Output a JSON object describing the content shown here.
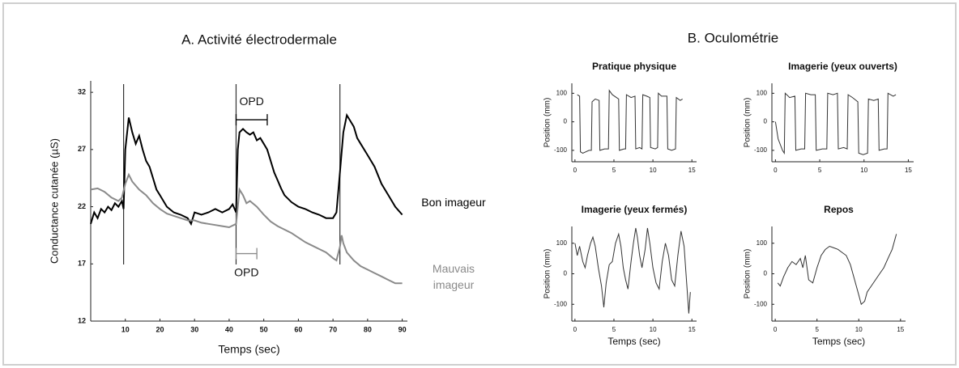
{
  "panel_b_title": "B. Oculométrie",
  "chart_data": [
    {
      "type": "line",
      "title": "A. Activité électrodermale",
      "xlabel": "Temps (sec)",
      "ylabel": "Conductance cutanée (µS)",
      "xlim": [
        0,
        91.5
      ],
      "ylim": [
        12,
        33
      ],
      "xticks": [
        10,
        20,
        30,
        40,
        50,
        60,
        70,
        80,
        90
      ],
      "yticks": [
        12,
        17,
        22,
        27,
        32
      ],
      "events": [
        9.5,
        42,
        72
      ],
      "annotations": [
        {
          "text": "OPD",
          "x": [
            42,
            51
          ],
          "y": 29.6,
          "color": "#000000"
        },
        {
          "text": "OPD",
          "x": [
            42,
            48
          ],
          "y": 17.9,
          "color": "#8a8a8a"
        }
      ],
      "series": [
        {
          "name": "Bon imageur",
          "color": "#000000",
          "x": [
            0,
            1,
            2,
            3,
            4,
            5,
            6,
            7,
            8,
            9,
            9.5,
            10,
            11,
            12,
            13,
            14,
            15,
            16,
            17,
            18,
            19,
            20,
            22,
            24,
            26,
            28,
            29,
            30,
            32,
            34,
            36,
            38,
            40,
            41,
            42,
            42.5,
            43,
            44,
            45,
            46,
            47,
            48,
            49,
            50,
            51,
            52,
            53,
            54,
            55,
            56,
            58,
            60,
            62,
            64,
            66,
            68,
            70,
            71,
            72,
            73,
            74,
            75,
            76,
            77,
            78,
            80,
            82,
            84,
            86,
            88,
            90
          ],
          "values": [
            20.5,
            21.5,
            21,
            21.8,
            21.5,
            22,
            21.7,
            22.3,
            22,
            22.5,
            21.8,
            27,
            29.8,
            28.5,
            27.5,
            28.2,
            27,
            26,
            25.5,
            24.5,
            23.5,
            23,
            22,
            21.5,
            21.3,
            21,
            20.5,
            21.5,
            21.3,
            21.5,
            21.8,
            21.5,
            21.8,
            22.2,
            21.5,
            27,
            28.5,
            28.8,
            28.5,
            28.3,
            28.5,
            27.8,
            28,
            27.5,
            27,
            26,
            25,
            24.3,
            23.6,
            23,
            22.4,
            22,
            21.8,
            21.5,
            21.3,
            21,
            21,
            21.5,
            25,
            28.5,
            30,
            29.5,
            29,
            28,
            27.5,
            26.5,
            25.5,
            24,
            23,
            22,
            21.3
          ]
        },
        {
          "name": "Mauvais imageur",
          "color": "#8a8a8a",
          "x": [
            0,
            2,
            4,
            6,
            8,
            9,
            10,
            11,
            12,
            14,
            16,
            18,
            20,
            22,
            24,
            26,
            28,
            30,
            32,
            34,
            36,
            38,
            40,
            42,
            43,
            44,
            45,
            46,
            48,
            50,
            52,
            54,
            56,
            58,
            60,
            62,
            64,
            66,
            68,
            70,
            71,
            72,
            72.5,
            73,
            74,
            76,
            78,
            80,
            82,
            84,
            86,
            88,
            90
          ],
          "values": [
            23.5,
            23.6,
            23.3,
            22.8,
            22.5,
            22.8,
            24,
            24.8,
            24.2,
            23.5,
            23,
            22.3,
            21.8,
            21.4,
            21.2,
            21,
            20.8,
            20.8,
            20.6,
            20.5,
            20.4,
            20.3,
            20.2,
            20.5,
            23.5,
            23,
            22.3,
            22.5,
            22,
            21.3,
            20.7,
            20.3,
            20,
            19.7,
            19.3,
            18.9,
            18.6,
            18.3,
            18,
            17.5,
            17.3,
            18.5,
            19.5,
            18.8,
            18,
            17.3,
            16.8,
            16.5,
            16.2,
            15.9,
            15.6,
            15.3,
            15.3
          ]
        }
      ]
    },
    {
      "type": "line",
      "title": "Pratique physique",
      "ylabel": "Position (mm)",
      "xlim": [
        -0.4,
        15.6
      ],
      "ylim": [
        -140,
        135
      ],
      "xticks": [
        0,
        5,
        10,
        15
      ],
      "yticks": [
        -100,
        0,
        100
      ],
      "series": [
        {
          "color": "#333333",
          "x": [
            0.3,
            0.6,
            0.7,
            1,
            1.8,
            2.1,
            2.2,
            2.6,
            3.1,
            3.2,
            3.8,
            4.3,
            4.4,
            4.8,
            5.6,
            5.7,
            6.3,
            6.5,
            6.6,
            7.2,
            7.7,
            7.8,
            8.3,
            8.6,
            8.7,
            9.2,
            9.6,
            9.7,
            10.3,
            10.6,
            10.7,
            11.1,
            11.8,
            11.9,
            12.4,
            12.9,
            13,
            13.5,
            13.8
          ],
          "values": [
            95,
            90,
            -105,
            -110,
            -100,
            -100,
            70,
            80,
            75,
            -100,
            -95,
            -95,
            110,
            95,
            80,
            -100,
            -95,
            -95,
            95,
            85,
            90,
            -95,
            -90,
            -95,
            95,
            90,
            85,
            -90,
            -95,
            -90,
            100,
            90,
            90,
            -95,
            -100,
            -95,
            85,
            75,
            80
          ]
        }
      ]
    },
    {
      "type": "line",
      "title": "Imagerie (yeux ouverts)",
      "ylabel": "Position (mm)",
      "xlim": [
        -0.4,
        15.6
      ],
      "ylim": [
        -140,
        135
      ],
      "xticks": [
        0,
        5,
        10,
        15
      ],
      "yticks": [
        -100,
        0,
        100
      ],
      "series": [
        {
          "color": "#333333",
          "x": [
            0,
            0.3,
            0.8,
            1,
            1.1,
            1.6,
            2.2,
            2.3,
            2.9,
            3.3,
            3.4,
            4,
            4.5,
            4.6,
            5.3,
            5.8,
            5.9,
            6.5,
            7,
            7.1,
            7.7,
            8.1,
            8.2,
            8.7,
            9.3,
            9.4,
            9.9,
            10.4,
            10.5,
            11.1,
            11.6,
            11.7,
            12.3,
            12.6,
            12.7,
            13.3,
            13.6
          ],
          "values": [
            0,
            -60,
            -100,
            -110,
            100,
            85,
            90,
            -100,
            -95,
            -95,
            100,
            95,
            95,
            -100,
            -95,
            -95,
            100,
            95,
            100,
            -95,
            -90,
            -95,
            95,
            85,
            70,
            -110,
            -115,
            -110,
            80,
            75,
            80,
            -100,
            -95,
            -95,
            100,
            90,
            95
          ]
        }
      ]
    },
    {
      "type": "line",
      "title": "Imagerie (yeux fermés)",
      "xlabel": "Temps (sec)",
      "ylabel": "Position (mm)",
      "xlim": [
        -0.4,
        15.6
      ],
      "ylim": [
        -155,
        155
      ],
      "xticks": [
        0,
        5,
        10,
        15
      ],
      "yticks": [
        -100,
        0,
        100
      ],
      "series": [
        {
          "color": "#333333",
          "x": [
            0,
            0.3,
            0.6,
            1,
            1.3,
            1.6,
            2,
            2.3,
            2.6,
            3,
            3.4,
            3.7,
            4,
            4.4,
            4.8,
            5.2,
            5.6,
            5.9,
            6.2,
            6.5,
            6.8,
            7.2,
            7.5,
            7.8,
            8,
            8.3,
            8.6,
            9,
            9.3,
            9.6,
            10,
            10.4,
            10.8,
            11.2,
            11.6,
            12,
            12.4,
            12.8,
            13.2,
            13.6,
            14,
            14.3,
            14.6,
            14.8
          ],
          "values": [
            100,
            60,
            90,
            40,
            20,
            60,
            100,
            120,
            90,
            20,
            -40,
            -110,
            -30,
            30,
            40,
            100,
            130,
            90,
            20,
            -20,
            -50,
            40,
            100,
            150,
            120,
            60,
            20,
            80,
            150,
            100,
            20,
            -30,
            -50,
            40,
            100,
            60,
            -20,
            -40,
            60,
            140,
            90,
            -20,
            -130,
            -60
          ]
        }
      ]
    },
    {
      "type": "line",
      "title": "Repos",
      "xlabel": "Temps (sec)",
      "ylabel": "Position (mm)",
      "xlim": [
        -0.4,
        15.6
      ],
      "ylim": [
        -155,
        155
      ],
      "xticks": [
        0,
        5,
        10,
        15
      ],
      "yticks": [
        -100,
        0,
        100
      ],
      "series": [
        {
          "color": "#333333",
          "x": [
            0.3,
            0.6,
            1,
            1.5,
            2,
            2.5,
            3,
            3.3,
            3.6,
            4,
            4.5,
            5,
            5.5,
            6,
            6.5,
            7,
            7.5,
            8,
            8.5,
            9,
            9.5,
            10,
            10.3,
            10.7,
            11,
            11.5,
            12,
            12.5,
            13,
            13.5,
            14,
            14.5
          ],
          "values": [
            -30,
            -40,
            -10,
            20,
            40,
            30,
            50,
            20,
            60,
            -20,
            -30,
            20,
            60,
            80,
            90,
            85,
            80,
            70,
            60,
            30,
            -20,
            -70,
            -100,
            -90,
            -60,
            -40,
            -20,
            0,
            20,
            50,
            80,
            130
          ]
        }
      ]
    }
  ]
}
